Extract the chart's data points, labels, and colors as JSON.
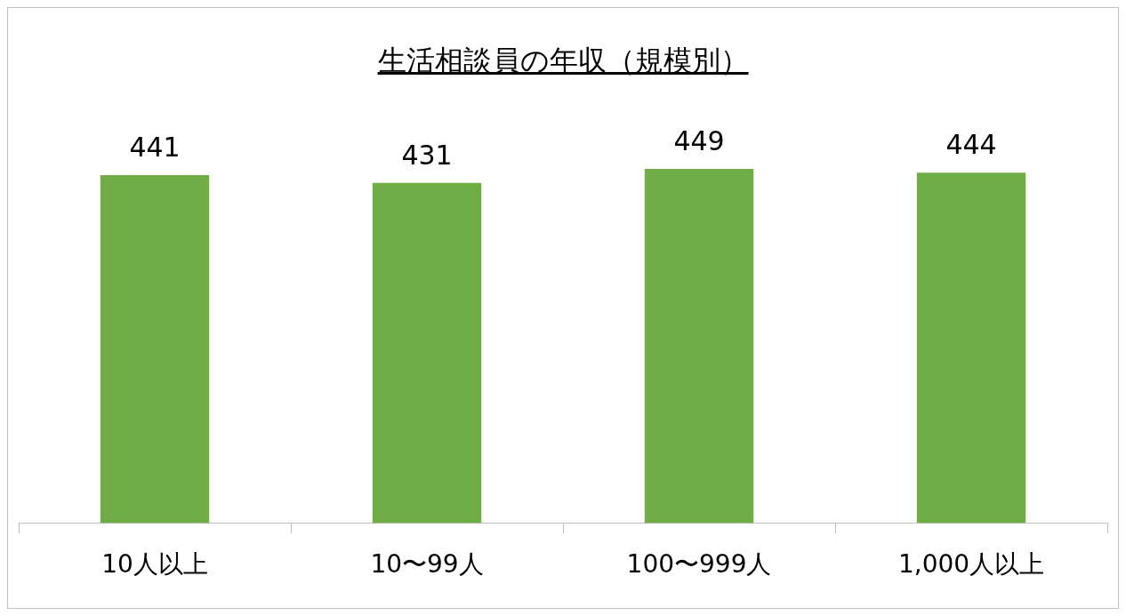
{
  "chart_data": {
    "type": "bar",
    "title": "生活相談員の年収（規模別）",
    "categories": [
      "10人以上",
      "10〜99人",
      "100〜999人",
      "1,000人以上"
    ],
    "values": [
      441,
      431,
      449,
      444
    ],
    "color": "#70ad47",
    "data_labels": true,
    "grid": false,
    "legend": false
  }
}
